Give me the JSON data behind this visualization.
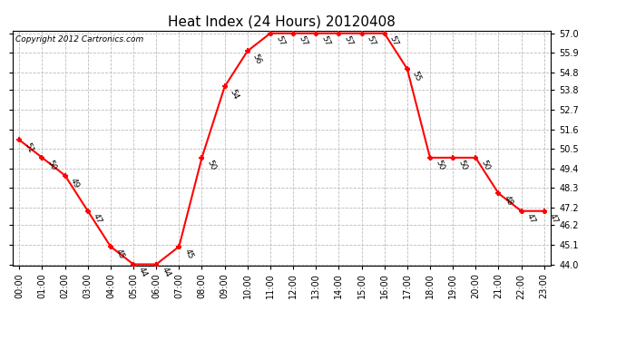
{
  "title": "Heat Index (24 Hours) 20120408",
  "copyright": "Copyright 2012 Cartronics.com",
  "hours": [
    0,
    1,
    2,
    3,
    4,
    5,
    6,
    7,
    8,
    9,
    10,
    11,
    12,
    13,
    14,
    15,
    16,
    17,
    18,
    19,
    20,
    21,
    22,
    23
  ],
  "values": [
    51,
    50,
    49,
    47,
    45,
    44,
    44,
    45,
    50,
    54,
    56,
    57,
    57,
    57,
    57,
    57,
    57,
    55,
    50,
    50,
    50,
    48,
    47,
    47
  ],
  "line_color": "red",
  "marker_color": "red",
  "background_color": "#ffffff",
  "grid_color": "#bbbbbb",
  "ylim_min": 44.0,
  "ylim_max": 57.0,
  "yticks": [
    44.0,
    45.1,
    46.2,
    47.2,
    48.3,
    49.4,
    50.5,
    51.6,
    52.7,
    53.8,
    54.8,
    55.9,
    57.0
  ],
  "xlabel_fontsize": 7,
  "ylabel_fontsize": 7,
  "title_fontsize": 11,
  "annotation_fontsize": 6.5,
  "copyright_fontsize": 6.5
}
